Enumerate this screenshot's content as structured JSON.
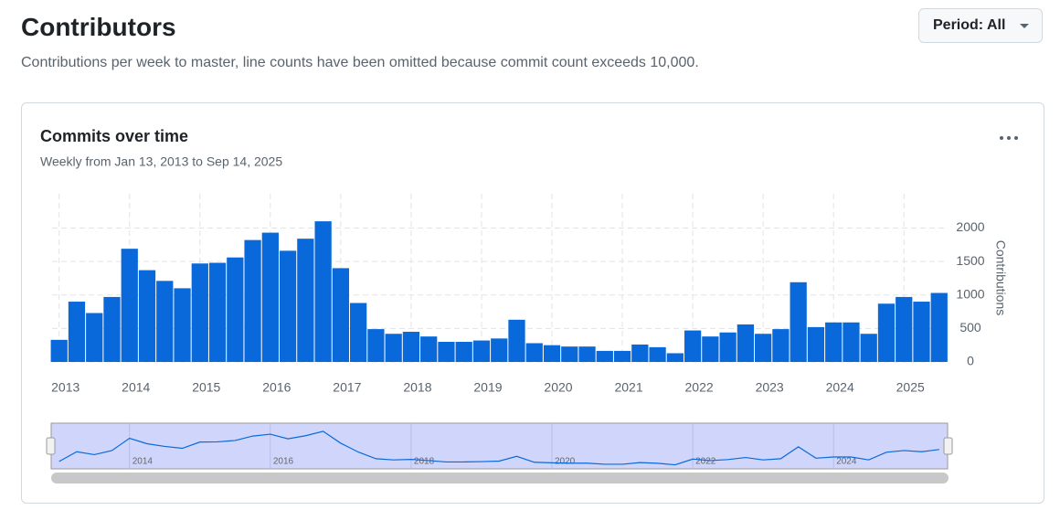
{
  "header": {
    "title": "Contributors",
    "subtitle": "Contributions per week to master, line counts have been omitted because commit count exceeds 10,000.",
    "period_button": "Period: All"
  },
  "chart_data": {
    "type": "bar",
    "title": "Commits over time",
    "subtitle": "Weekly from Jan 13, 2013 to Sep 14, 2025",
    "y_label": "Contributions",
    "color": "#0969da",
    "grid": true,
    "x": [
      2013,
      2013.25,
      2013.5,
      2013.75,
      2014,
      2014.25,
      2014.5,
      2014.75,
      2015,
      2015.25,
      2015.5,
      2015.75,
      2016,
      2016.25,
      2016.5,
      2016.75,
      2017,
      2017.25,
      2017.5,
      2017.75,
      2018,
      2018.25,
      2018.5,
      2018.75,
      2019,
      2019.25,
      2019.5,
      2019.75,
      2020,
      2020.25,
      2020.5,
      2020.75,
      2021,
      2021.25,
      2021.5,
      2021.75,
      2022,
      2022.25,
      2022.5,
      2022.75,
      2023,
      2023.25,
      2023.5,
      2023.75,
      2024,
      2024.25,
      2024.5,
      2024.75,
      2025,
      2025.25,
      2025.5
    ],
    "values": [
      330,
      900,
      730,
      970,
      1690,
      1370,
      1210,
      1100,
      1470,
      1480,
      1560,
      1820,
      1930,
      1660,
      1840,
      2100,
      1400,
      880,
      490,
      420,
      450,
      380,
      300,
      300,
      320,
      350,
      630,
      280,
      250,
      230,
      230,
      165,
      165,
      260,
      220,
      130,
      470,
      380,
      440,
      560,
      420,
      490,
      1190,
      520,
      590,
      590,
      420,
      870,
      970,
      900,
      1030
    ],
    "xlim": [
      2012.9,
      2025.62
    ],
    "xticks": [
      2013,
      2014,
      2015,
      2016,
      2017,
      2018,
      2019,
      2020,
      2021,
      2022,
      2023,
      2024,
      2025
    ],
    "ylim": [
      0,
      2470
    ],
    "yticks": [
      0,
      500,
      1000,
      1500,
      2000
    ]
  }
}
